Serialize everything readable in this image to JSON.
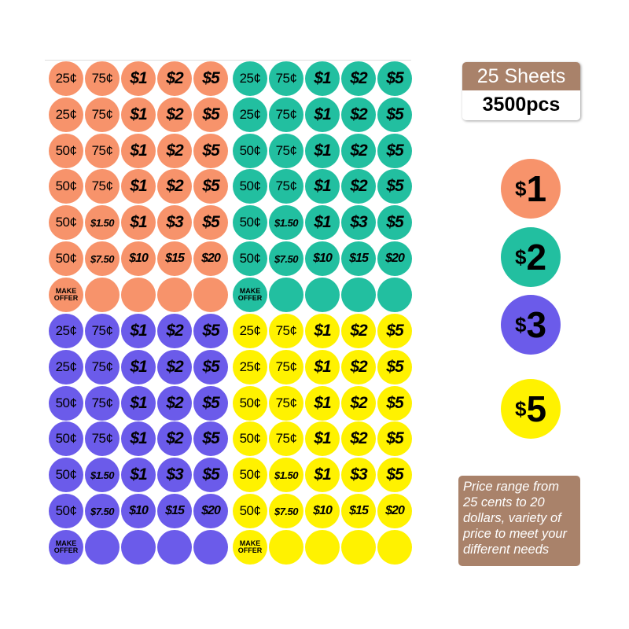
{
  "colors": {
    "orange": "#F7936B",
    "teal": "#22BFA0",
    "purple": "#6B5BEA",
    "yellow": "#FFF200",
    "brown": "#A9826A"
  },
  "sheet_labels": [
    [
      "25¢",
      "75¢",
      "$1",
      "$2",
      "$5"
    ],
    [
      "25¢",
      "75¢",
      "$1",
      "$2",
      "$5"
    ],
    [
      "50¢",
      "75¢",
      "$1",
      "$2",
      "$5"
    ],
    [
      "50¢",
      "75¢",
      "$1",
      "$2",
      "$5"
    ],
    [
      "50¢",
      "$1.50",
      "$1",
      "$3",
      "$5"
    ],
    [
      "50¢",
      "$7.50",
      "$10",
      "$15",
      "$20"
    ],
    [
      "MAKE OFFER",
      "",
      "",
      "",
      ""
    ]
  ],
  "sheets": [
    {
      "color": "orange",
      "name": "orange"
    },
    {
      "color": "teal",
      "name": "teal"
    },
    {
      "color": "purple",
      "name": "purple"
    },
    {
      "color": "yellow",
      "name": "yellow"
    }
  ],
  "badge": {
    "sheets": "25 Sheets",
    "pieces": "3500pcs"
  },
  "samples": [
    {
      "label": "1",
      "color": "orange"
    },
    {
      "label": "2",
      "color": "teal"
    },
    {
      "label": "3",
      "color": "purple"
    },
    {
      "label": "5",
      "color": "yellow"
    }
  ],
  "dollar_sign": "$",
  "description": "Price range from 25 cents to 20 dollars, variety of price to meet your different needs"
}
